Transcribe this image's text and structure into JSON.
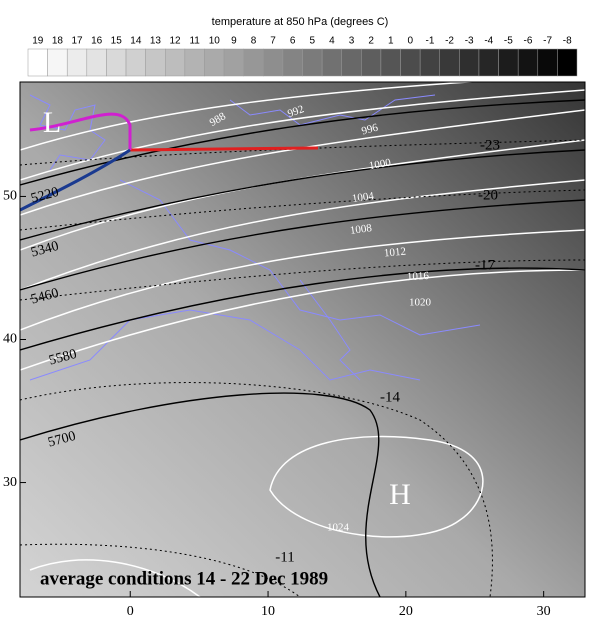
{
  "map": {
    "colorbar": {
      "title": "temperature at 850 hPa (degrees C)",
      "labels": [
        19,
        18,
        17,
        16,
        15,
        14,
        13,
        12,
        11,
        10,
        9,
        8,
        7,
        6,
        5,
        4,
        3,
        2,
        1,
        0,
        -1,
        -2,
        -3,
        -4,
        -5,
        -6,
        -7,
        -8
      ]
    },
    "xlim": [
      -8,
      33
    ],
    "ylim": [
      22,
      58
    ],
    "xticks": [
      0,
      10,
      20,
      30
    ],
    "yticks": [
      30,
      40,
      50
    ],
    "isobar_labels": [
      "988",
      "992",
      "996",
      "1000",
      "1004",
      "1008",
      "1012",
      "1016",
      "1020",
      "1024"
    ],
    "height_labels": [
      "5220",
      "5340",
      "5460",
      "5580",
      "5700"
    ],
    "temperature_labels": [
      "-23",
      "-20",
      "-17",
      "-14",
      "-11"
    ],
    "pressure_centers": [
      "L",
      "H"
    ],
    "caption": "average conditions 14 - 22 Dec 1989"
  }
}
